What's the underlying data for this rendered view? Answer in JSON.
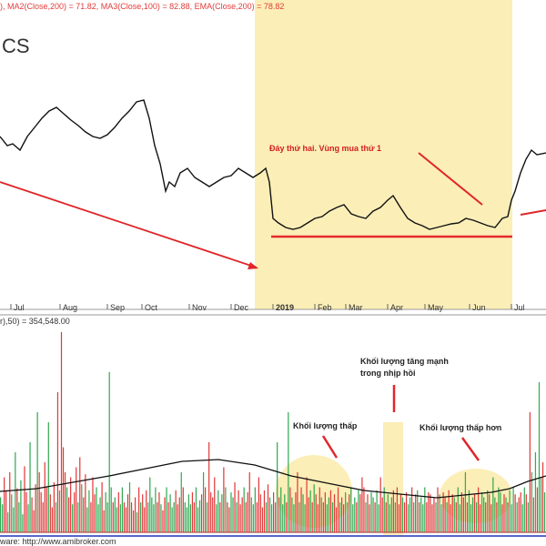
{
  "header": {
    "ma1": "), MA2(Close,200) = 71.82, MA3(Close,100) = 82.88, EMA(Close,200) = 78.82",
    "symbol": "CS"
  },
  "volume_header": "r),50) = 354,548.00",
  "footer": "ware: http://www.amibroker.com",
  "annotations": {
    "support": "Đáy thứ hai. Vùng mua thứ 1",
    "volume_spike_line1": "Khối lượng tăng mạnh",
    "volume_spike_line2": "trong nhịp hồi",
    "low_volume": "Khối lượng thấp",
    "lower_volume": "Khối lượng thấp hơn"
  },
  "colors": {
    "price_line": "#111111",
    "highlight": "#fbeeb7",
    "arrow": "#e0262a",
    "support": "#e32b2b",
    "volume_up": "#34a853",
    "volume_down": "#e23a3a",
    "volume_ma": "#111111",
    "annotation_red": "#d42020",
    "header_red": "#e33b3b",
    "header_blue": "#3355aa"
  },
  "chart_data": {
    "type": "line",
    "xaxis_ticks": [
      "Jul",
      "Aug",
      "Sep",
      "Oct",
      "Nov",
      "Dec",
      "2019",
      "Feb",
      "Mar",
      "Apr",
      "May",
      "Jun",
      "Jul"
    ],
    "price": {
      "x": [
        0,
        8,
        14,
        22,
        30,
        38,
        46,
        54,
        62,
        70,
        78,
        86,
        94,
        102,
        110,
        118,
        126,
        134,
        142,
        150,
        158,
        164,
        170,
        176,
        182,
        186,
        192,
        198,
        206,
        214,
        222,
        230,
        238,
        246,
        254,
        262,
        270,
        278,
        286,
        292,
        296,
        300,
        306,
        314,
        322,
        330,
        338,
        346,
        354,
        362,
        370,
        378,
        386,
        394,
        402,
        410,
        418,
        426,
        432,
        440,
        448,
        456,
        464,
        472,
        480,
        488,
        496,
        504,
        512,
        520,
        528,
        536,
        544,
        552,
        558,
        562,
        566,
        572,
        578,
        584,
        590,
        600
      ],
      "y": [
        150,
        160,
        158,
        165,
        150,
        140,
        130,
        122,
        118,
        125,
        132,
        138,
        145,
        150,
        152,
        148,
        140,
        130,
        122,
        112,
        110,
        130,
        160,
        180,
        210,
        200,
        205,
        190,
        185,
        195,
        200,
        205,
        200,
        195,
        193,
        185,
        190,
        195,
        190,
        185,
        200,
        240,
        245,
        250,
        252,
        250,
        245,
        240,
        238,
        232,
        228,
        225,
        235,
        238,
        240,
        232,
        228,
        220,
        215,
        228,
        240,
        245,
        248,
        252,
        250,
        248,
        246,
        245,
        240,
        242,
        245,
        248,
        250,
        240,
        238,
        220,
        210,
        190,
        175,
        165,
        170,
        168
      ]
    },
    "volume": {
      "values": [
        35,
        28,
        55,
        42,
        20,
        60,
        38,
        25,
        80,
        44,
        30,
        52,
        18,
        66,
        40,
        28,
        90,
        35,
        22,
        48,
        120,
        60,
        40,
        30,
        70,
        45,
        110,
        38,
        25,
        50,
        30,
        140,
        42,
        200,
        85,
        60,
        45,
        35,
        55,
        28,
        40,
        65,
        30,
        75,
        48,
        35,
        58,
        25,
        42,
        30,
        55,
        38,
        45,
        28,
        35,
        50,
        22,
        40,
        30,
        160,
        45,
        30,
        35,
        25,
        40,
        28,
        45,
        30,
        25,
        38,
        50,
        30,
        22,
        35,
        20,
        45,
        30,
        38,
        25,
        42,
        30,
        55,
        35,
        28,
        45,
        30,
        40,
        28,
        22,
        35,
        45,
        30,
        38,
        25,
        30,
        42,
        28,
        35,
        60,
        45,
        30,
        25,
        38,
        28,
        40,
        30,
        45,
        25,
        32,
        38,
        60,
        45,
        30,
        90,
        40,
        35,
        55,
        28,
        42,
        30,
        38,
        65,
        45,
        30,
        25,
        40,
        35,
        50,
        30,
        42,
        28,
        35,
        45,
        30,
        40,
        60,
        35,
        28,
        45,
        30,
        55,
        38,
        25,
        42,
        30,
        48,
        35,
        28,
        40,
        30,
        90,
        35,
        45,
        28,
        38,
        30,
        120,
        45,
        35,
        28,
        40,
        60,
        30,
        45,
        38,
        28,
        55,
        35,
        42,
        30,
        48,
        38,
        28,
        45,
        35,
        30,
        40,
        28,
        35,
        42,
        30,
        38,
        25,
        45,
        30,
        35,
        28,
        40,
        30,
        38,
        45,
        28,
        35,
        30,
        42,
        38,
        55,
        45,
        30,
        38,
        28,
        40,
        35,
        30,
        42,
        28,
        55,
        35,
        45,
        30,
        38,
        28,
        35,
        42,
        30,
        45,
        28,
        38,
        35,
        30,
        40,
        28,
        35,
        45,
        30,
        38,
        42,
        30,
        35,
        28,
        45,
        30,
        40,
        38,
        28,
        35,
        30,
        45,
        38,
        28,
        40,
        35,
        30,
        42,
        28,
        38,
        35,
        30,
        45,
        28,
        40,
        35,
        60,
        30,
        42,
        28,
        35,
        38,
        30,
        45,
        28,
        40,
        35,
        30,
        42,
        38,
        28,
        55,
        35,
        30,
        45,
        40,
        28,
        38,
        35,
        30,
        42,
        28,
        45,
        38,
        30,
        35,
        40,
        28,
        45,
        38,
        30,
        120,
        60,
        35,
        80,
        45,
        150,
        55,
        70,
        40
      ],
      "ma": {
        "x": [
          0,
          40,
          80,
          120,
          160,
          200,
          240,
          280,
          300,
          320,
          340,
          360,
          380,
          400,
          420,
          440,
          460,
          480,
          500,
          520,
          540,
          560,
          580,
          600
        ],
        "y": [
          45,
          48,
          55,
          62,
          70,
          78,
          80,
          74,
          68,
          62,
          58,
          54,
          50,
          46,
          44,
          42,
          40,
          38,
          40,
          42,
          44,
          48,
          56,
          62
        ]
      }
    }
  }
}
